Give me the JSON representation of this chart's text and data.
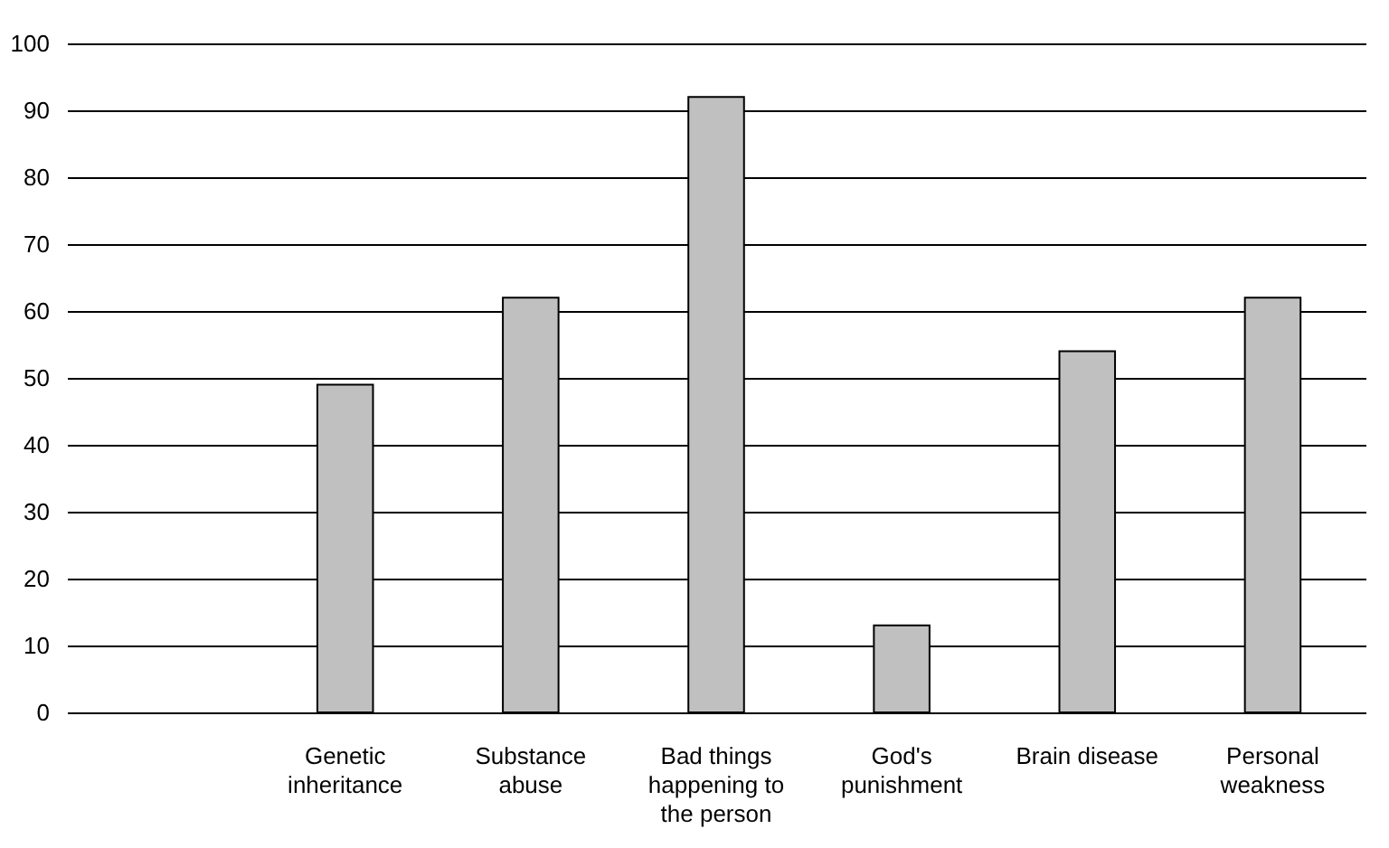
{
  "chart_data": {
    "type": "bar",
    "categories": [
      null,
      "Genetic inheritance",
      "Substance abuse",
      "Bad things happening to the person",
      "God's punishment",
      "Brain disease",
      "Personal weakness"
    ],
    "values": [
      null,
      49,
      62,
      92,
      13,
      54,
      62
    ],
    "color": "#c0c0c0",
    "ylim": [
      0,
      100
    ],
    "yticks": [
      0,
      10,
      20,
      30,
      40,
      50,
      60,
      70,
      80,
      90,
      100
    ],
    "grid": "y"
  }
}
